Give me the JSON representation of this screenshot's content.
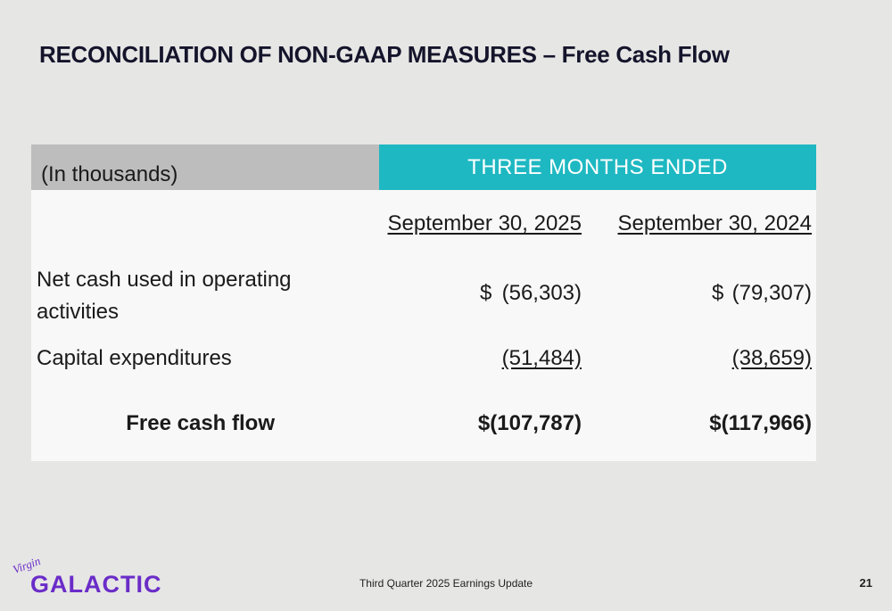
{
  "header": {
    "title": "RECONCILIATION OF NON-GAAP MEASURES – Free Cash Flow"
  },
  "table": {
    "unit_label": "(In thousands)",
    "group_header": "THREE MONTHS ENDED",
    "columns": [
      "September 30, 2025",
      "September 30, 2024"
    ],
    "rows": [
      {
        "label": "Net cash used in operating activities",
        "cells": [
          {
            "currency": "$",
            "amount": "(56,303)"
          },
          {
            "currency": "$",
            "amount": "(79,307)"
          }
        ]
      },
      {
        "label": "Capital expenditures",
        "cells": [
          {
            "amount": "(51,484)"
          },
          {
            "amount": "(38,659)"
          }
        ]
      },
      {
        "label": "Free cash flow",
        "cells": [
          {
            "amount": "$(107,787)"
          },
          {
            "amount": "$(117,966)"
          }
        ]
      }
    ]
  },
  "footer": {
    "text": "Third Quarter 2025 Earnings Update",
    "page": "21"
  },
  "logo": {
    "script": "Virgin",
    "wordmark": "GALACTIC"
  }
}
